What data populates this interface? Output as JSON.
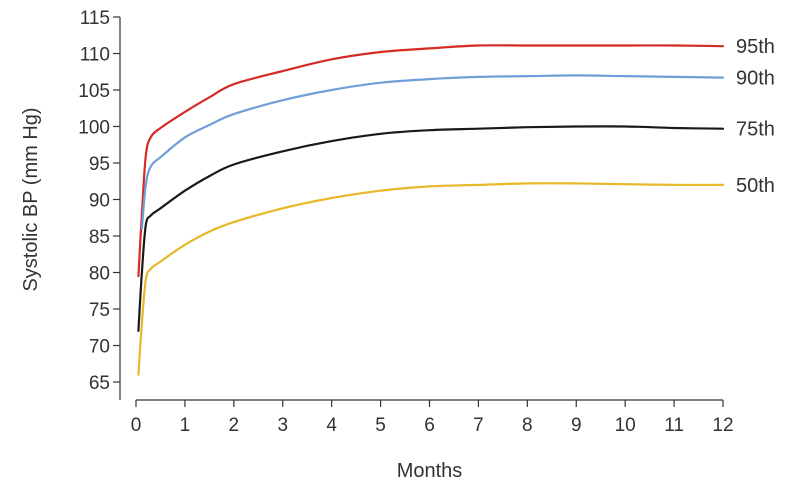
{
  "chart_data": {
    "type": "line",
    "title": "",
    "xlabel": "Months",
    "ylabel": "Systolic BP (mm Hg)",
    "xlim": [
      0,
      12
    ],
    "ylim": [
      65,
      115
    ],
    "x_ticks": [
      0,
      1,
      2,
      3,
      4,
      5,
      6,
      7,
      8,
      9,
      10,
      11,
      12
    ],
    "y_ticks": [
      65,
      70,
      75,
      80,
      85,
      90,
      95,
      100,
      105,
      110,
      115
    ],
    "grid": false,
    "series": [
      {
        "name": "95th",
        "color": "#d42b25",
        "points": [
          [
            0.05,
            79.5
          ],
          [
            0.12,
            88
          ],
          [
            0.2,
            96
          ],
          [
            0.3,
            98.5
          ],
          [
            0.5,
            99.8
          ],
          [
            1,
            102
          ],
          [
            1.5,
            104
          ],
          [
            2,
            105.8
          ],
          [
            3,
            107.6
          ],
          [
            4,
            109.2
          ],
          [
            5,
            110.2
          ],
          [
            6,
            110.7
          ],
          [
            7,
            111.1
          ],
          [
            8,
            111.1
          ],
          [
            9,
            111.1
          ],
          [
            10,
            111.1
          ],
          [
            11,
            111.1
          ],
          [
            12,
            111
          ]
        ]
      },
      {
        "name": "90th",
        "color": "#6f9fd8",
        "points": [
          [
            0.12,
            86
          ],
          [
            0.2,
            92
          ],
          [
            0.3,
            94.5
          ],
          [
            0.5,
            95.8
          ],
          [
            1,
            98.5
          ],
          [
            1.5,
            100.2
          ],
          [
            2,
            101.7
          ],
          [
            3,
            103.6
          ],
          [
            4,
            105
          ],
          [
            5,
            106
          ],
          [
            6,
            106.5
          ],
          [
            7,
            106.8
          ],
          [
            8,
            106.9
          ],
          [
            9,
            107
          ],
          [
            10,
            106.9
          ],
          [
            11,
            106.8
          ],
          [
            12,
            106.7
          ]
        ]
      },
      {
        "name": "75th",
        "color": "#1a1a1a",
        "points": [
          [
            0.05,
            72
          ],
          [
            0.12,
            80
          ],
          [
            0.2,
            86.5
          ],
          [
            0.3,
            87.8
          ],
          [
            0.5,
            88.8
          ],
          [
            1,
            91.2
          ],
          [
            1.5,
            93.2
          ],
          [
            2,
            94.8
          ],
          [
            3,
            96.6
          ],
          [
            4,
            98
          ],
          [
            5,
            99
          ],
          [
            6,
            99.5
          ],
          [
            7,
            99.7
          ],
          [
            8,
            99.9
          ],
          [
            9,
            100
          ],
          [
            10,
            100
          ],
          [
            11,
            99.8
          ],
          [
            12,
            99.7
          ]
        ]
      },
      {
        "name": "50th",
        "color": "#e6b82a",
        "points": [
          [
            0.05,
            66
          ],
          [
            0.12,
            73
          ],
          [
            0.2,
            79
          ],
          [
            0.3,
            80.5
          ],
          [
            0.5,
            81.5
          ],
          [
            1,
            83.8
          ],
          [
            1.5,
            85.6
          ],
          [
            2,
            86.9
          ],
          [
            3,
            88.8
          ],
          [
            4,
            90.2
          ],
          [
            5,
            91.2
          ],
          [
            6,
            91.8
          ],
          [
            7,
            92
          ],
          [
            8,
            92.2
          ],
          [
            9,
            92.2
          ],
          [
            10,
            92.1
          ],
          [
            11,
            92
          ],
          [
            12,
            92
          ]
        ]
      }
    ]
  }
}
